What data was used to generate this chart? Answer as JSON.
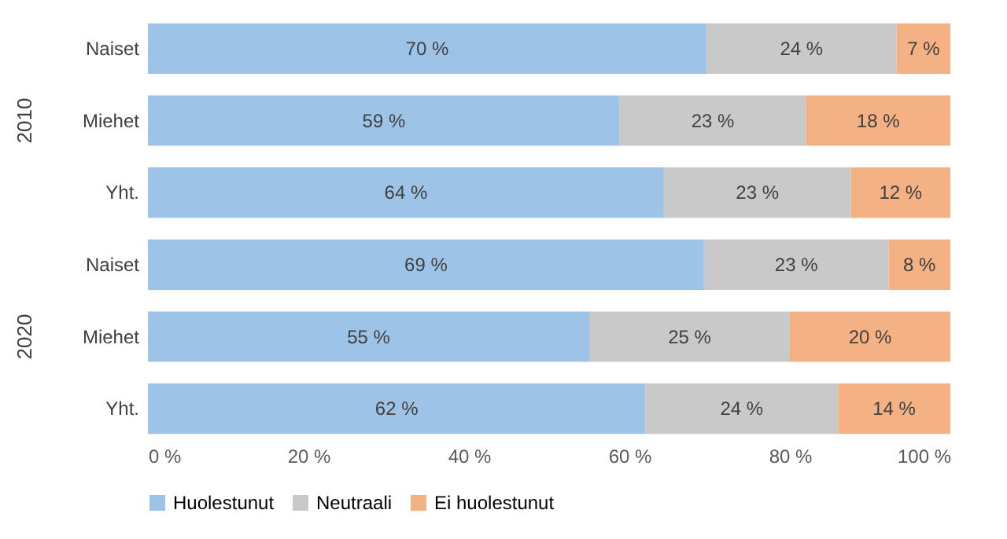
{
  "chart_data": {
    "type": "bar",
    "orientation": "horizontal",
    "stacked": true,
    "categories": [
      "Naiset",
      "Miehet",
      "Yht.",
      "Naiset",
      "Miehet",
      "Yht."
    ],
    "series": [
      {
        "name": "Huolestunut",
        "color": "#9dc3e6",
        "values": [
          69.6,
          58.8,
          64.3,
          69.3,
          55,
          62
        ],
        "value_labels": [
          "70 %",
          "59 %",
          "64 %",
          "69 %",
          "55 %",
          "62 %"
        ]
      },
      {
        "name": "Neutraali",
        "color": "#c9c9c9",
        "values": [
          23.7,
          23.2,
          23.3,
          23,
          25,
          24
        ],
        "value_labels": [
          "24 %",
          "23 %",
          "23 %",
          "23 %",
          "25 %",
          "24 %"
        ]
      },
      {
        "name": "Ei huolestunut",
        "color": "#f4b183",
        "values": [
          6.7,
          18,
          12.4,
          7.7,
          20,
          14
        ],
        "value_labels": [
          "7 %",
          "18 %",
          "12 %",
          "8 %",
          "20 %",
          "14 %"
        ]
      }
    ],
    "xlim": [
      0,
      100
    ],
    "xticks": [
      {
        "value": 0,
        "label": "0 %"
      },
      {
        "value": 20,
        "label": "20 %"
      },
      {
        "value": 40,
        "label": "40 %"
      },
      {
        "value": 60,
        "label": "60 %"
      },
      {
        "value": 80,
        "label": "80 %"
      },
      {
        "value": 100,
        "label": "100 %"
      }
    ],
    "annotations": [
      "2010",
      "2020"
    ],
    "legend": "bottom",
    "grid": false
  }
}
